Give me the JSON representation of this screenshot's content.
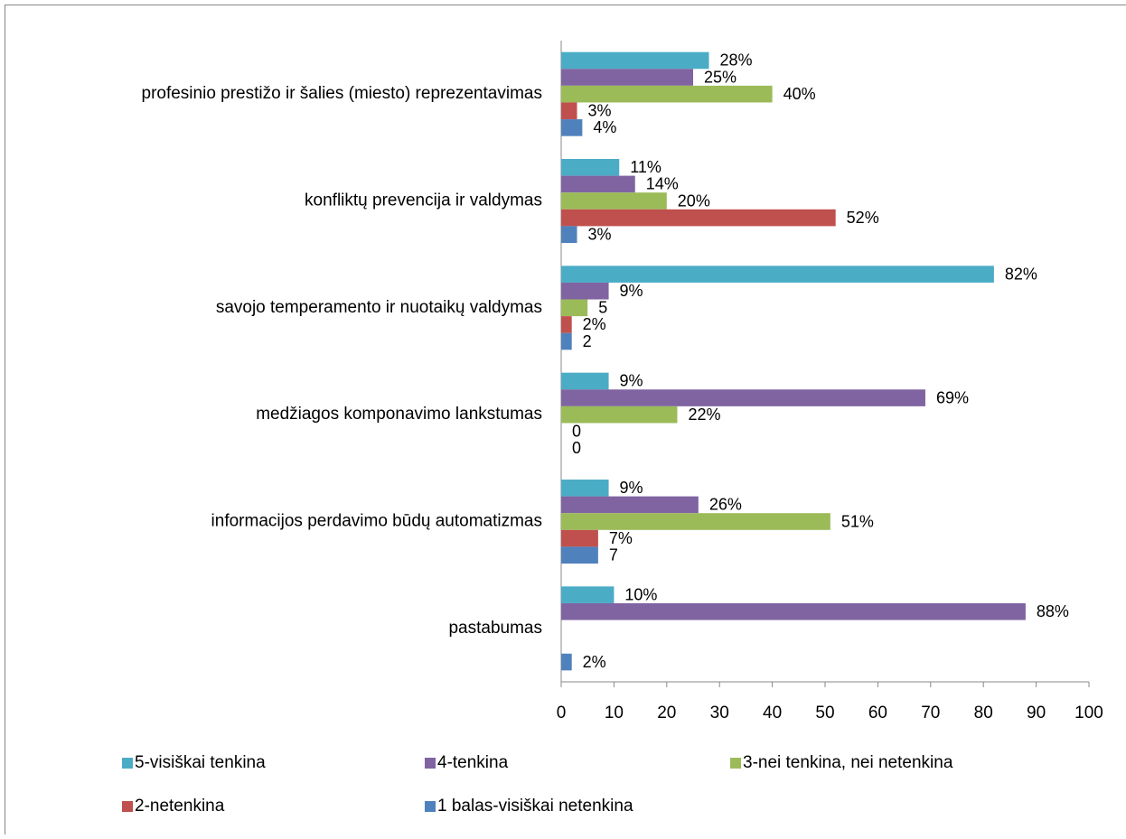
{
  "chart_data": {
    "type": "bar",
    "orientation": "horizontal",
    "categories": [
      "profesinio prestižo ir šalies (miesto) reprezentavimas",
      "konfliktų prevencija ir valdymas",
      "savojo temperamento ir nuotaikų valdymas",
      "medžiagos komponavimo lankstumas",
      "informacijos perdavimo būdų automatizmas",
      "pastabumas"
    ],
    "series": [
      {
        "name": "5-visiškai tenkina",
        "color": "#4bacc6",
        "values": [
          28,
          11,
          82,
          9,
          9,
          10
        ],
        "value_labels": [
          "28%",
          "11%",
          "82%",
          "9%",
          "9%",
          "10%"
        ]
      },
      {
        "name": "4-tenkina",
        "color": "#8064a2",
        "values": [
          25,
          14,
          9,
          69,
          26,
          88
        ],
        "value_labels": [
          "25%",
          "14%",
          "9%",
          "69%",
          "26%",
          "88%"
        ]
      },
      {
        "name": "3-nei tenkina, nei netenkina",
        "color": "#9bbb59",
        "values": [
          40,
          20,
          5,
          22,
          51,
          null
        ],
        "value_labels": [
          "40%",
          "20%",
          "5",
          "22%",
          "51%",
          null
        ]
      },
      {
        "name": "2-netenkina",
        "color": "#c0504d",
        "values": [
          3,
          52,
          2,
          0,
          7,
          null
        ],
        "value_labels": [
          "3%",
          "52%",
          "2%",
          "0",
          "7%",
          null
        ]
      },
      {
        "name": "1 balas-visiškai netenkina",
        "color": "#4f81bd",
        "values": [
          4,
          3,
          2,
          0,
          7,
          2
        ],
        "value_labels": [
          "4%",
          "3%",
          "2",
          "0",
          "7",
          "2%"
        ]
      }
    ],
    "xlim": [
      0,
      100
    ],
    "xticks": [
      0,
      10,
      20,
      30,
      40,
      50,
      60,
      70,
      80,
      90,
      100
    ],
    "legend": "bottom"
  }
}
